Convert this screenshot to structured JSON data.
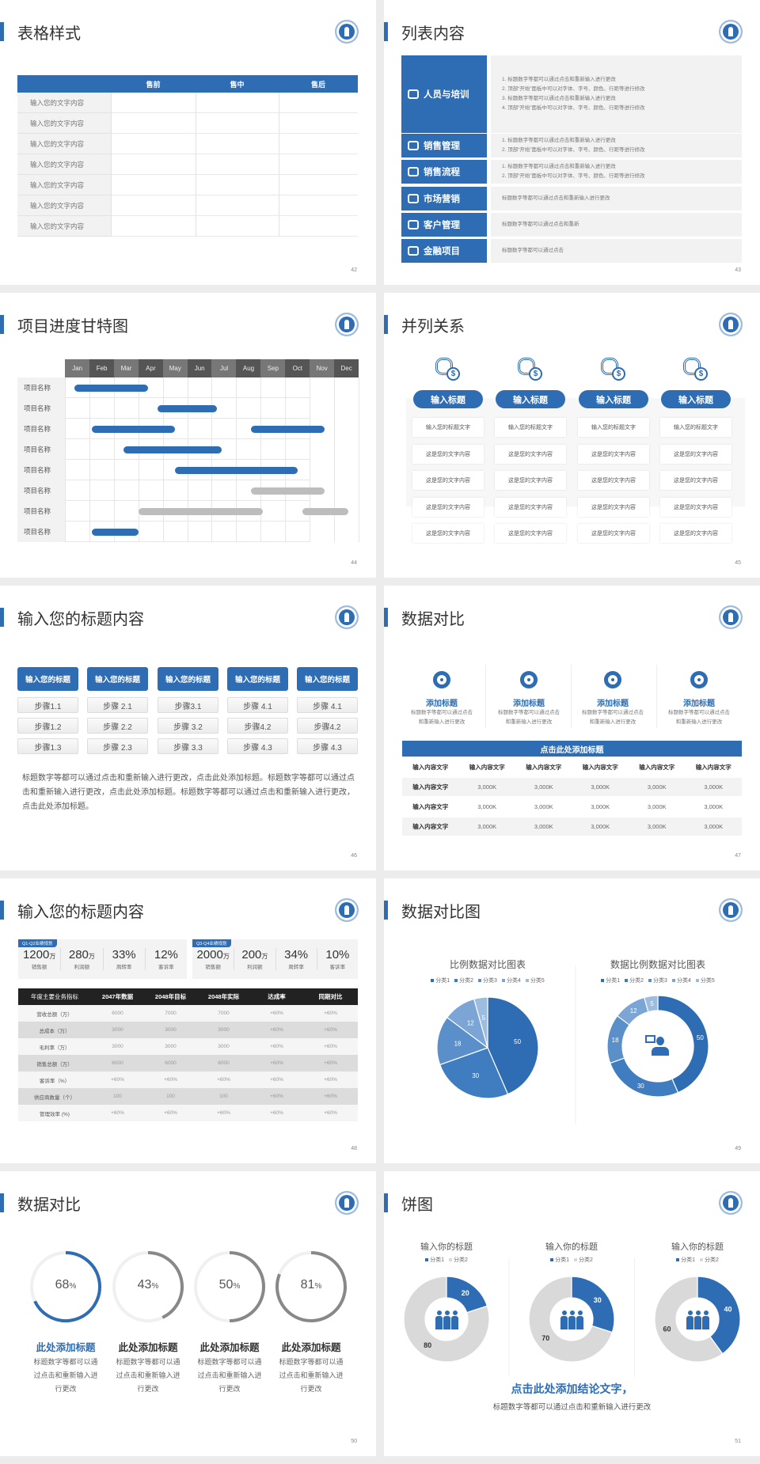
{
  "theme": {
    "blue": "#2e6db4",
    "gray_bar": "#bdbdbd",
    "light": "#f2f2f2"
  },
  "s42": {
    "title": "表格样式",
    "page": "42",
    "header": [
      "",
      "售前",
      "售中",
      "售后"
    ],
    "rows": [
      "输入您的文字内容",
      "输入您的文字内容",
      "输入您的文字内容",
      "输入您的文字内容",
      "输入您的文字内容",
      "输入您的文字内容",
      "输入您的文字内容"
    ]
  },
  "s43": {
    "title": "列表内容",
    "page": "43",
    "items": [
      {
        "label": "人员与培训",
        "icon": "training-icon",
        "lines": [
          "1.  标题数字等都可以通过点击和重新输入进行更改",
          "2.  顶部“开始”面板中可以对字体、字号、颜色、行距等进行修改",
          "3.  标题数字等都可以通过点击和重新输入进行更改",
          "4.  顶部“开始”面板中可以对字体、字号、颜色、行距等进行修改"
        ]
      },
      {
        "label": "销售管理",
        "icon": "user-gear-icon",
        "lines": [
          "1.  标题数字等都可以通过点击和重新输入进行更改",
          "2.  顶部“开始”面板中可以对字体、字号、颜色、行距等进行修改"
        ]
      },
      {
        "label": "销售流程",
        "icon": "cycle-icon",
        "lines": [
          "1.  标题数字等都可以通过点击和重新输入进行更改",
          "2.  顶部“开始”面板中可以对字体、字号、颜色、行距等进行修改"
        ]
      },
      {
        "label": "市场营销",
        "icon": "bar-chart-icon",
        "lines": [
          "标题数字等都可以通过点击和重新输入进行更改"
        ]
      },
      {
        "label": "客户管理",
        "icon": "users-icon",
        "lines": [
          "标题数字等都可以通过点击和重新"
        ]
      },
      {
        "label": "金融项目",
        "icon": "money-hand-icon",
        "lines": [
          "标题数字等都可以通过点击"
        ]
      }
    ]
  },
  "s44": {
    "title": "项目进度甘特图",
    "page": "44",
    "months": [
      "Jan",
      "Feb",
      "Mar",
      "Apr",
      "May",
      "Jun",
      "Jul",
      "Aug",
      "Sep",
      "Oct",
      "Nov",
      "Dec"
    ],
    "rows": [
      {
        "label": "项目名称",
        "bars": [
          {
            "start": 0.4,
            "end": 3.4,
            "status": "active"
          }
        ]
      },
      {
        "label": "项目名称",
        "bars": [
          {
            "start": 3.8,
            "end": 6.2,
            "status": "active"
          }
        ]
      },
      {
        "label": "项目名称",
        "bars": [
          {
            "start": 1.1,
            "end": 4.5,
            "status": "active"
          },
          {
            "start": 7.6,
            "end": 10.6,
            "status": "active"
          }
        ]
      },
      {
        "label": "项目名称",
        "bars": [
          {
            "start": 2.4,
            "end": 6.4,
            "status": "active"
          }
        ]
      },
      {
        "label": "项目名称",
        "bars": [
          {
            "start": 4.5,
            "end": 9.5,
            "status": "active"
          }
        ]
      },
      {
        "label": "项目名称",
        "bars": [
          {
            "start": 7.6,
            "end": 10.6,
            "status": "planned"
          }
        ]
      },
      {
        "label": "项目名称",
        "bars": [
          {
            "start": 3.0,
            "end": 8.1,
            "status": "planned"
          },
          {
            "start": 9.7,
            "end": 11.6,
            "status": "planned"
          }
        ]
      },
      {
        "label": "项目名称",
        "bars": [
          {
            "start": 1.1,
            "end": 3.0,
            "status": "active"
          }
        ]
      }
    ]
  },
  "s45": {
    "title": "并列关系",
    "page": "45",
    "columns": [
      {
        "heading": "输入标题",
        "icon": "coins-dollar-icon",
        "cells": [
          "输入您的标题文字",
          "这是您的文字内容",
          "这是您的文字内容",
          "这是您的文字内容",
          "这是您的文字内容"
        ]
      },
      {
        "heading": "输入标题",
        "icon": "coins-dollar-icon",
        "cells": [
          "输入您的标题文字",
          "这是您的文字内容",
          "这是您的文字内容",
          "这是您的文字内容",
          "这是您的文字内容"
        ]
      },
      {
        "heading": "输入标题",
        "icon": "coins-dollar-icon",
        "cells": [
          "输入您的标题文字",
          "这是您的文字内容",
          "这是您的文字内容",
          "这是您的文字内容",
          "这是您的文字内容"
        ]
      },
      {
        "heading": "输入标题",
        "icon": "coins-dollar-icon",
        "cells": [
          "输入您的标题文字",
          "这是您的文字内容",
          "这是您的文字内容",
          "这是您的文字内容",
          "这是您的文字内容"
        ]
      }
    ]
  },
  "s46": {
    "title": "输入您的标题内容",
    "page": "46",
    "columns": [
      {
        "heading": "输入您的标题",
        "steps": [
          "步骤1.1",
          "步骤1.2",
          "步骤1.3"
        ]
      },
      {
        "heading": "输入您的标题",
        "steps": [
          "步骤 2.1",
          "步骤 2.2",
          "步骤 2.3"
        ]
      },
      {
        "heading": "输入您的标题",
        "steps": [
          "步骤3.1",
          "步骤 3.2",
          "步骤 3.3"
        ]
      },
      {
        "heading": "输入您的标题",
        "steps": [
          "步骤 4.1",
          "步骤4.2",
          "步骤 4.3"
        ]
      },
      {
        "heading": "输入您的标题",
        "steps": [
          "步骤 4.1",
          "步骤4.2",
          "步骤 4.3"
        ]
      }
    ],
    "paragraph": "标题数字等都可以通过点击和重新输入进行更改，点击此处添加标题。标题数字等都可以通过点击和重新输入进行更改，点击此处添加标题。标题数字等都可以通过点击和重新输入进行更改，点击此处添加标题。"
  },
  "s47": {
    "title": "数据对比",
    "page": "47",
    "cards": [
      {
        "title": "添加标题",
        "desc": "标题数字等都可以通过点击和重新输入进行更改"
      },
      {
        "title": "添加标题",
        "desc": "标题数字等都可以通过点击和重新输入进行更改"
      },
      {
        "title": "添加标题",
        "desc": "标题数字等都可以通过点击和重新输入进行更改"
      },
      {
        "title": "添加标题",
        "desc": "标题数字等都可以通过点击和重新输入进行更改"
      }
    ],
    "table_title": "点击此处添加标题",
    "header": [
      "输入内容文字",
      "输入内容文字",
      "输入内容文字",
      "输入内容文字",
      "输入内容文字",
      "输入内容文字"
    ],
    "rows": [
      [
        "输入内容文字",
        "3,000K",
        "3,000K",
        "3,000K",
        "3,000K",
        "3,000K"
      ],
      [
        "输入内容文字",
        "3,000K",
        "3,000K",
        "3,000K",
        "3,000K",
        "3,000K"
      ],
      [
        "输入内容文字",
        "3,000K",
        "3,000K",
        "3,000K",
        "3,000K",
        "3,000K"
      ]
    ]
  },
  "s48": {
    "title": "输入您的标题内容",
    "page": "48",
    "blocks": [
      {
        "tag": "Q1-Q2业绩规划",
        "stats": [
          {
            "value": "1200",
            "unit": "万",
            "label": "销售额"
          },
          {
            "value": "280",
            "unit": "万",
            "label": "利润额"
          },
          {
            "value": "33%",
            "unit": "",
            "label": "周转率"
          },
          {
            "value": "12%",
            "unit": "",
            "label": "客诉率"
          }
        ]
      },
      {
        "tag": "Q3-Q4业绩规划",
        "stats": [
          {
            "value": "2000",
            "unit": "万",
            "label": "销售额"
          },
          {
            "value": "200",
            "unit": "万",
            "label": "利润额"
          },
          {
            "value": "34%",
            "unit": "",
            "label": "周转率"
          },
          {
            "value": "10%",
            "unit": "",
            "label": "客诉率"
          }
        ]
      }
    ],
    "header": [
      "年度主要业务指标",
      "2047年数据",
      "2048年目标",
      "2048年实际",
      "达成率",
      "同期对比"
    ],
    "rows": [
      [
        "营收总额（万）",
        "6000",
        "7000",
        "7000",
        "+60%",
        "+60%"
      ],
      [
        "总成本（万）",
        "3000",
        "3000",
        "3000",
        "+60%",
        "+60%"
      ],
      [
        "毛利率（万）",
        "3000",
        "3000",
        "3000",
        "+60%",
        "+60%"
      ],
      [
        "销售总额（万）",
        "6000",
        "6000",
        "6000",
        "+60%",
        "+60%"
      ],
      [
        "客诉率（%）",
        "+60%",
        "+60%",
        "+60%",
        "+60%",
        "+60%"
      ],
      [
        "供应商数量（个）",
        "100",
        "100",
        "100",
        "+60%",
        "+60%"
      ],
      [
        "管理效率 (%)",
        "+60%",
        "+60%",
        "+60%",
        "+60%",
        "+60%"
      ]
    ]
  },
  "s49": {
    "title": "数据对比图",
    "page": "49"
  },
  "s50": {
    "title": "数据对比",
    "page": "50"
  },
  "s51": {
    "title": "饼图",
    "page": "51",
    "conclusion": "点击此处添加结论文字，",
    "desc": "标题数字等都可以通过点击和重新输入进行更改"
  },
  "chart_data": [
    {
      "type": "pie",
      "title": "比例数据对比图表",
      "categories": [
        "分类1",
        "分类2",
        "分类3",
        "分类4",
        "分类5"
      ],
      "values": [
        50,
        30,
        18,
        12,
        5
      ],
      "legend": "top",
      "colors": [
        "#2e6db4",
        "#3f7cc0",
        "#5b8fca",
        "#7ba5d5",
        "#9dbde0"
      ]
    },
    {
      "type": "donut",
      "title": "数据比例数据对比图表",
      "categories": [
        "分类1",
        "分类2",
        "分类3",
        "分类4",
        "分类5"
      ],
      "values": [
        50,
        30,
        18,
        12,
        5
      ],
      "legend": "top",
      "colors": [
        "#2e6db4",
        "#3f7cc0",
        "#5b8fca",
        "#7ba5d5",
        "#9dbde0"
      ]
    },
    {
      "type": "progress-rings",
      "items": [
        {
          "percent": 68,
          "unit": "%",
          "title": "此处添加标题",
          "desc": "标题数字等都可以通过点击和重新输入进行更改",
          "color": "#2e6db4"
        },
        {
          "percent": 43,
          "unit": "%",
          "title": "此处添加标题",
          "desc": "标题数字等都可以通过点击和重新输入进行更改",
          "color": "#888888"
        },
        {
          "percent": 50,
          "unit": "%",
          "title": "此处添加标题",
          "desc": "标题数字等都可以通过点击和重新输入进行更改",
          "color": "#888888"
        },
        {
          "percent": 81,
          "unit": "%",
          "title": "此处添加标题",
          "desc": "标题数字等都可以通过点击和重新输入进行更改",
          "color": "#888888"
        }
      ]
    },
    {
      "type": "donut",
      "title": "输入你的标题",
      "categories": [
        "分类1",
        "分类2"
      ],
      "values": [
        20,
        80
      ],
      "legend": "top",
      "colors": [
        "#2e6db4",
        "#d9d9d9"
      ]
    },
    {
      "type": "donut",
      "title": "输入你的标题",
      "categories": [
        "分类1",
        "分类2"
      ],
      "values": [
        30,
        70
      ],
      "legend": "top",
      "colors": [
        "#2e6db4",
        "#d9d9d9"
      ]
    },
    {
      "type": "donut",
      "title": "输入你的标题",
      "categories": [
        "分类1",
        "分类2"
      ],
      "values": [
        40,
        60
      ],
      "legend": "top",
      "colors": [
        "#2e6db4",
        "#d9d9d9"
      ]
    }
  ]
}
